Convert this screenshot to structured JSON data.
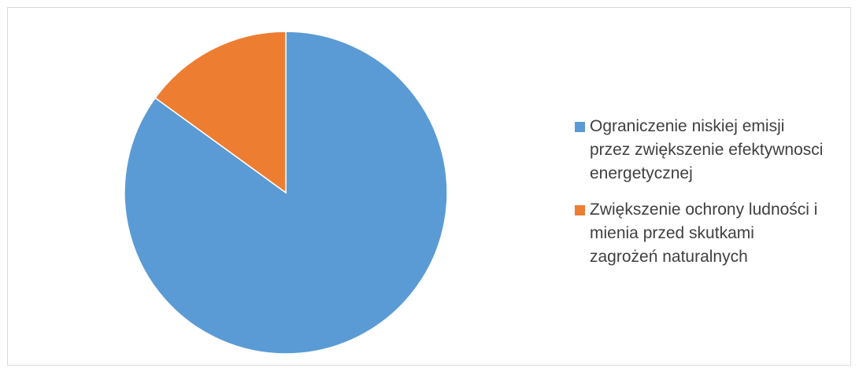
{
  "chart_data": {
    "type": "pie",
    "title": "",
    "slices": [
      {
        "label": "Ograniczenie niskiej emisji przez zwiększenie efektywnosci energetycznej",
        "value": 85,
        "color": "#5B9BD5"
      },
      {
        "label": "Zwiększenie ochrony ludności i mienia przed skutkami zagrożeń naturalnych",
        "value": 15,
        "color": "#ED7D31"
      }
    ],
    "legend_position": "right"
  }
}
